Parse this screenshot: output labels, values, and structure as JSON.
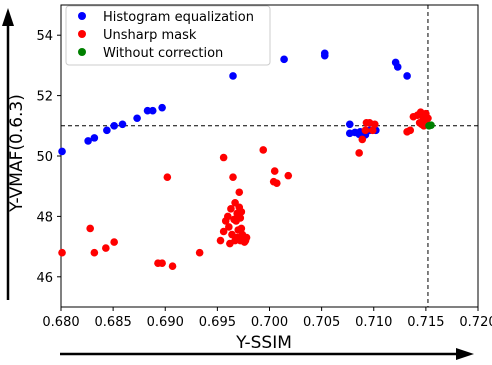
{
  "chart_data": {
    "type": "scatter",
    "xlabel": "Y-SSIM",
    "ylabel": "Y-VMAF(0.6.3)",
    "xlim": [
      0.68,
      0.72
    ],
    "ylim": [
      45,
      55
    ],
    "x_ticks": [
      "0.680",
      "0.685",
      "0.690",
      "0.695",
      "0.700",
      "0.705",
      "0.710",
      "0.715",
      "0.720"
    ],
    "x_tick_values": [
      0.68,
      0.685,
      0.69,
      0.695,
      0.7,
      0.705,
      0.71,
      0.715,
      0.72
    ],
    "y_ticks": [
      "46",
      "48",
      "50",
      "52",
      "54"
    ],
    "y_tick_values": [
      46,
      48,
      50,
      52,
      54
    ],
    "grid": false,
    "legend_position": "top-left",
    "reference_lines": [
      {
        "orientation": "horizontal",
        "value": 51.0,
        "style": "dashed",
        "color": "#000000"
      },
      {
        "orientation": "vertical",
        "value": 0.7152,
        "style": "dashed",
        "color": "#000000"
      }
    ],
    "series": [
      {
        "name": "Histogram equalization",
        "color": "#0000ff",
        "points": [
          [
            0.6801,
            50.15
          ],
          [
            0.6826,
            50.5
          ],
          [
            0.6832,
            50.6
          ],
          [
            0.6844,
            50.85
          ],
          [
            0.6851,
            51.0
          ],
          [
            0.6859,
            51.05
          ],
          [
            0.6873,
            51.25
          ],
          [
            0.6883,
            51.5
          ],
          [
            0.6888,
            51.5
          ],
          [
            0.6897,
            51.6
          ],
          [
            0.6965,
            52.65
          ],
          [
            0.7014,
            53.2
          ],
          [
            0.7053,
            53.4
          ],
          [
            0.7053,
            53.32
          ],
          [
            0.7121,
            53.1
          ],
          [
            0.7123,
            52.95
          ],
          [
            0.7132,
            52.65
          ],
          [
            0.7077,
            51.05
          ],
          [
            0.7077,
            50.75
          ],
          [
            0.7082,
            50.78
          ],
          [
            0.7087,
            50.8
          ],
          [
            0.7091,
            50.75
          ],
          [
            0.7096,
            50.85
          ],
          [
            0.7102,
            50.85
          ],
          [
            0.7086,
            50.72
          ],
          [
            0.7092,
            50.7
          ]
        ]
      },
      {
        "name": "Unsharp mask",
        "color": "#ff0000",
        "points": [
          [
            0.6801,
            46.8
          ],
          [
            0.6828,
            47.6
          ],
          [
            0.6832,
            46.8
          ],
          [
            0.6843,
            46.95
          ],
          [
            0.6851,
            47.15
          ],
          [
            0.6893,
            46.45
          ],
          [
            0.6897,
            46.45
          ],
          [
            0.6902,
            49.3
          ],
          [
            0.6907,
            46.35
          ],
          [
            0.6933,
            46.8
          ],
          [
            0.6953,
            47.2
          ],
          [
            0.6956,
            47.5
          ],
          [
            0.6956,
            49.95
          ],
          [
            0.6958,
            47.85
          ],
          [
            0.696,
            48.0
          ],
          [
            0.6961,
            47.65
          ],
          [
            0.6962,
            47.1
          ],
          [
            0.6963,
            48.25
          ],
          [
            0.6964,
            47.4
          ],
          [
            0.6965,
            49.3
          ],
          [
            0.6966,
            47.9
          ],
          [
            0.6967,
            47.2
          ],
          [
            0.6967,
            48.45
          ],
          [
            0.6968,
            47.85
          ],
          [
            0.6969,
            48.1
          ],
          [
            0.6969,
            47.3
          ],
          [
            0.697,
            48.0
          ],
          [
            0.697,
            47.55
          ],
          [
            0.6971,
            48.3
          ],
          [
            0.6971,
            48.8
          ],
          [
            0.6972,
            47.95
          ],
          [
            0.6972,
            47.2
          ],
          [
            0.6973,
            47.6
          ],
          [
            0.6973,
            48.15
          ],
          [
            0.6974,
            47.4
          ],
          [
            0.6975,
            47.25
          ],
          [
            0.6976,
            47.15
          ],
          [
            0.6977,
            47.2
          ],
          [
            0.6978,
            47.3
          ],
          [
            0.6994,
            50.2
          ],
          [
            0.7004,
            49.15
          ],
          [
            0.7005,
            49.5
          ],
          [
            0.7007,
            49.1
          ],
          [
            0.7018,
            49.35
          ],
          [
            0.7086,
            50.1
          ],
          [
            0.7089,
            50.55
          ],
          [
            0.7092,
            50.85
          ],
          [
            0.7093,
            51.1
          ],
          [
            0.7096,
            51.1
          ],
          [
            0.7099,
            50.85
          ],
          [
            0.7101,
            51.05
          ],
          [
            0.7132,
            50.8
          ],
          [
            0.7135,
            50.85
          ],
          [
            0.7138,
            51.3
          ],
          [
            0.7142,
            51.35
          ],
          [
            0.7144,
            51.1
          ],
          [
            0.7145,
            51.45
          ],
          [
            0.7146,
            51.05
          ],
          [
            0.7147,
            51.3
          ],
          [
            0.7148,
            51.0
          ],
          [
            0.7149,
            51.2
          ],
          [
            0.715,
            51.4
          ],
          [
            0.7151,
            51.05
          ],
          [
            0.7152,
            51.25
          ]
        ]
      },
      {
        "name": "Without correction",
        "color": "#008000",
        "points": [
          [
            0.7153,
            51.0
          ],
          [
            0.7155,
            51.02
          ]
        ]
      }
    ]
  }
}
